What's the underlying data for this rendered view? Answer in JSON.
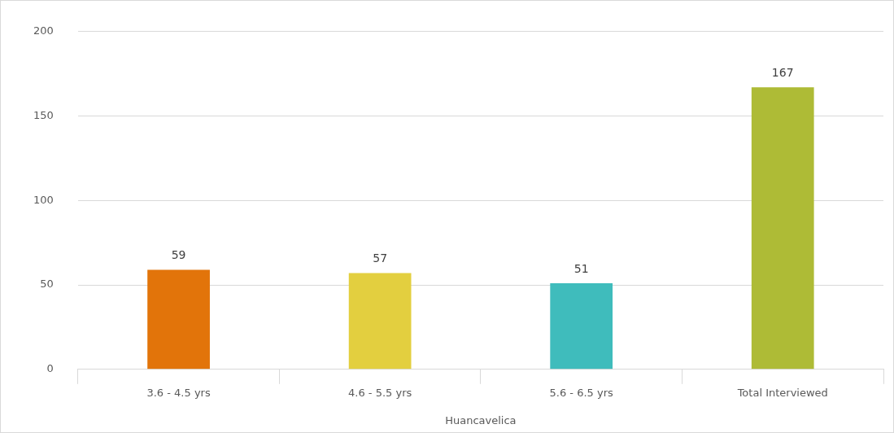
{
  "chart_data": {
    "type": "bar",
    "xlabel": "Huancavelica",
    "categories": [
      "3.6 - 4.5 yrs",
      "4.6 - 5.5 yrs",
      "5.6 - 6.5 yrs",
      "Total Interviewed"
    ],
    "values": [
      59,
      57,
      51,
      167
    ],
    "colors": [
      "#e2740a",
      "#e3cf3f",
      "#3fbcbc",
      "#aebb36"
    ],
    "ylim": [
      0,
      200
    ],
    "yticks": [
      0,
      50,
      100,
      150,
      200
    ],
    "grid": "y",
    "legend": false,
    "data_labels": true
  }
}
